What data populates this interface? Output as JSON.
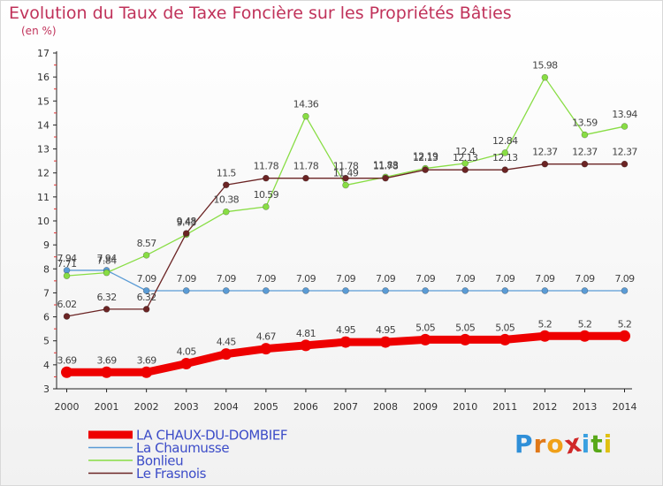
{
  "title": "Evolution du Taux de Taxe Foncière sur les Propriétés Bâties",
  "subtitle": "(en %)",
  "logo": {
    "letters": [
      "P",
      "r",
      "o",
      "x",
      "i",
      "t",
      "i"
    ],
    "colors": [
      "#2f8fd8",
      "#e07818",
      "#f0a018",
      "#d02828",
      "#3aa0e0",
      "#58a818",
      "#e0c010"
    ]
  },
  "chart_data": {
    "type": "line",
    "title": "Evolution du Taux de Taxe Foncière sur les Propriétés Bâties",
    "ylabel": "(en %)",
    "xlabel": "",
    "ylim": [
      3,
      17
    ],
    "yticks": [
      3,
      4,
      5,
      6,
      7,
      8,
      9,
      10,
      11,
      12,
      13,
      14,
      15,
      16,
      17
    ],
    "categories": [
      "2000",
      "2001",
      "2002",
      "2003",
      "2004",
      "2005",
      "2006",
      "2007",
      "2008",
      "2009",
      "2010",
      "2011",
      "2012",
      "2013",
      "2014"
    ],
    "series": [
      {
        "name": "LA CHAUX-DU-DOMBIEF",
        "color": "#ee0000",
        "values": [
          3.69,
          3.69,
          3.69,
          4.05,
          4.45,
          4.67,
          4.81,
          4.95,
          4.95,
          5.05,
          5.05,
          5.05,
          5.2,
          5.2,
          5.2
        ],
        "labels": [
          "3.69",
          "3.69",
          "3.69",
          "4.05",
          "4.45",
          "4.67",
          "4.81",
          "4.95",
          "4.95",
          "5.05",
          "5.05",
          "5.05",
          "5.2",
          "5.2",
          "5.2"
        ]
      },
      {
        "name": "La Chaumusse",
        "color": "#5a9bd5",
        "values": [
          7.94,
          7.94,
          7.09,
          7.09,
          7.09,
          7.09,
          7.09,
          7.09,
          7.09,
          7.09,
          7.09,
          7.09,
          7.09,
          7.09,
          7.09
        ],
        "labels": [
          "7.94",
          "7.94",
          "7.09",
          "7.09",
          "7.09",
          "7.09",
          "7.09",
          "7.09",
          "7.09",
          "7.09",
          "7.09",
          "7.09",
          "7.09",
          "7.09",
          "7.09"
        ]
      },
      {
        "name": "Bonlieu",
        "color": "#88dd44",
        "values": [
          7.71,
          7.84,
          8.57,
          9.43,
          10.38,
          10.59,
          14.36,
          11.49,
          11.83,
          12.19,
          12.4,
          12.84,
          15.98,
          13.59,
          13.94
        ],
        "labels": [
          "7.71",
          "7.84",
          "8.57",
          "9.43",
          "10.38",
          "10.59",
          "14.36",
          "11.49",
          "11.83",
          "12.19",
          "12.4",
          "12.84",
          "15.98",
          "13.59",
          "13.94"
        ]
      },
      {
        "name": "Le Frasnois",
        "color": "#6b2424",
        "values": [
          6.02,
          6.32,
          6.32,
          9.48,
          11.5,
          11.78,
          11.78,
          11.78,
          11.78,
          12.13,
          12.13,
          12.13,
          12.37,
          12.37,
          12.37
        ],
        "labels": [
          "6.02",
          "6.32",
          "6.32",
          "9.48",
          "11.5",
          "11.78",
          "11.78",
          "11.78",
          "11.78",
          "12.13",
          "12.13",
          "12.13",
          "12.37",
          "12.37",
          "12.37"
        ]
      }
    ],
    "legend_position": "bottom-left",
    "grid": false
  }
}
